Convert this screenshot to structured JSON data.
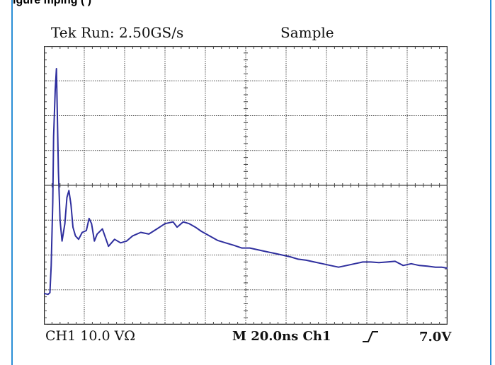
{
  "caption": "igure  mping (                    )",
  "scope": {
    "run_status": "Tek Run: 2.50GS/s",
    "acquisition_mode": "Sample",
    "channel_scale": "CH1 10.0 VΩ",
    "timebase": "M 20.0ns Ch1",
    "trigger_level": "7.0V",
    "trigger_icon": "rising-edge-icon"
  },
  "colors": {
    "trace": "#2f2f9e",
    "grid": "#444444",
    "frame_border": "#2b8fd6"
  },
  "chart_data": {
    "type": "line",
    "title": "",
    "xlabel": "",
    "ylabel": "",
    "x_divisions": 10,
    "y_divisions": 8,
    "xlim": [
      0,
      10
    ],
    "ylim": [
      -4,
      4
    ],
    "grid": true,
    "series": [
      {
        "values": [
          [
            0.0,
            -3.1
          ],
          [
            0.1,
            -3.13
          ],
          [
            0.15,
            -3.08
          ],
          [
            0.18,
            -2.3
          ],
          [
            0.22,
            -0.5
          ],
          [
            0.24,
            1.4
          ],
          [
            0.28,
            2.75
          ],
          [
            0.31,
            3.35
          ],
          [
            0.33,
            2.2
          ],
          [
            0.36,
            0.4
          ],
          [
            0.4,
            -1.0
          ],
          [
            0.45,
            -1.6
          ],
          [
            0.52,
            -1.1
          ],
          [
            0.57,
            -0.35
          ],
          [
            0.62,
            -0.15
          ],
          [
            0.67,
            -0.55
          ],
          [
            0.72,
            -1.2
          ],
          [
            0.78,
            -1.45
          ],
          [
            0.86,
            -1.55
          ],
          [
            0.95,
            -1.35
          ],
          [
            1.05,
            -1.3
          ],
          [
            1.12,
            -0.95
          ],
          [
            1.18,
            -1.1
          ],
          [
            1.25,
            -1.6
          ],
          [
            1.32,
            -1.4
          ],
          [
            1.45,
            -1.25
          ],
          [
            1.6,
            -1.75
          ],
          [
            1.75,
            -1.55
          ],
          [
            1.9,
            -1.65
          ],
          [
            2.05,
            -1.6
          ],
          [
            2.2,
            -1.45
          ],
          [
            2.4,
            -1.35
          ],
          [
            2.6,
            -1.4
          ],
          [
            2.8,
            -1.25
          ],
          [
            3.0,
            -1.1
          ],
          [
            3.2,
            -1.05
          ],
          [
            3.3,
            -1.2
          ],
          [
            3.45,
            -1.05
          ],
          [
            3.6,
            -1.1
          ],
          [
            3.75,
            -1.2
          ],
          [
            3.9,
            -1.32
          ],
          [
            4.1,
            -1.45
          ],
          [
            4.3,
            -1.58
          ],
          [
            4.5,
            -1.65
          ],
          [
            4.7,
            -1.72
          ],
          [
            4.9,
            -1.8
          ],
          [
            5.1,
            -1.8
          ],
          [
            5.3,
            -1.85
          ],
          [
            5.5,
            -1.9
          ],
          [
            5.7,
            -1.95
          ],
          [
            5.9,
            -2.0
          ],
          [
            6.1,
            -2.05
          ],
          [
            6.3,
            -2.12
          ],
          [
            6.5,
            -2.15
          ],
          [
            6.7,
            -2.2
          ],
          [
            6.9,
            -2.25
          ],
          [
            7.1,
            -2.3
          ],
          [
            7.3,
            -2.35
          ],
          [
            7.5,
            -2.3
          ],
          [
            7.7,
            -2.25
          ],
          [
            7.9,
            -2.2
          ],
          [
            8.1,
            -2.2
          ],
          [
            8.3,
            -2.22
          ],
          [
            8.5,
            -2.2
          ],
          [
            8.7,
            -2.18
          ],
          [
            8.9,
            -2.3
          ],
          [
            9.1,
            -2.25
          ],
          [
            9.3,
            -2.3
          ],
          [
            9.5,
            -2.32
          ],
          [
            9.7,
            -2.35
          ],
          [
            9.85,
            -2.35
          ],
          [
            10.0,
            -2.38
          ]
        ]
      }
    ]
  }
}
